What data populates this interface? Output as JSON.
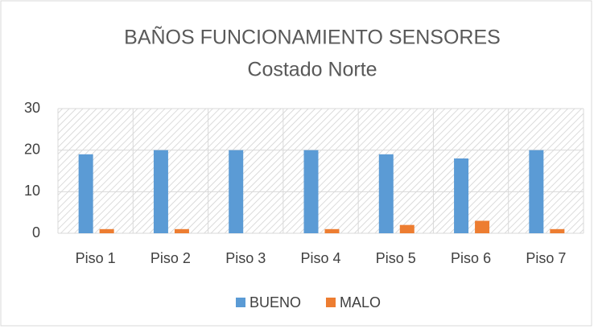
{
  "chart_data": {
    "type": "bar",
    "title": "BAÑOS FUNCIONAMIENTO SENSORES",
    "subtitle": "Costado Norte",
    "categories": [
      "Piso 1",
      "Piso 2",
      "Piso 3",
      "Piso 4",
      "Piso 5",
      "Piso 6",
      "Piso 7"
    ],
    "series": [
      {
        "name": "BUENO",
        "color": "#5b9bd5",
        "values": [
          19,
          20,
          20,
          20,
          19,
          18,
          20
        ]
      },
      {
        "name": "MALO",
        "color": "#ed7d31",
        "values": [
          1,
          1,
          0,
          1,
          2,
          3,
          1
        ]
      }
    ],
    "ylim": [
      0,
      30
    ],
    "yticks": [
      0,
      10,
      20,
      30
    ],
    "grid": true,
    "legend": "bottom"
  }
}
